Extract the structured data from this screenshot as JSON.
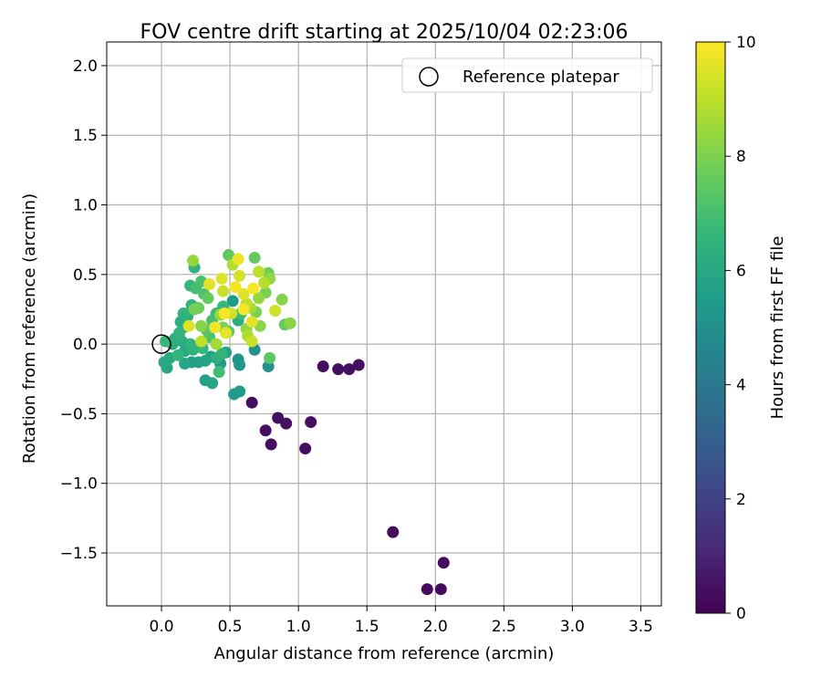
{
  "chart_data": {
    "type": "scatter",
    "title": "FOV centre drift starting at 2025/10/04 02:23:06",
    "xlabel": "Angular distance from reference (arcmin)",
    "ylabel": "Rotation from reference (arcmin)",
    "xlim": [
      -0.4,
      3.65
    ],
    "ylim": [
      -1.88,
      2.17
    ],
    "xticks": [
      0.0,
      0.5,
      1.0,
      1.5,
      2.0,
      2.5,
      3.0,
      3.5
    ],
    "yticks": [
      -1.5,
      -1.0,
      -0.5,
      0.0,
      0.5,
      1.0,
      1.5,
      2.0
    ],
    "xtick_labels": [
      "0.0",
      "0.5",
      "1.0",
      "1.5",
      "2.0",
      "2.5",
      "3.0",
      "3.5"
    ],
    "ytick_labels": [
      "−1.5",
      "−1.0",
      "−0.5",
      "0.0",
      "0.5",
      "1.0",
      "1.5",
      "2.0"
    ],
    "grid": true,
    "legend_position": "top-right",
    "reference": {
      "label": "Reference platepar",
      "x": 0.0,
      "y": 0.0
    },
    "colorbar": {
      "label": "Hours from first FF file",
      "colormap": "viridis",
      "range": [
        0,
        10
      ],
      "ticks": [
        0,
        2,
        4,
        6,
        8,
        10
      ],
      "tick_labels": [
        "0",
        "2",
        "4",
        "6",
        "8",
        "10"
      ]
    },
    "colormap_stops": [
      "#440154",
      "#482878",
      "#3e4989",
      "#31688e",
      "#26828e",
      "#1f9e89",
      "#35b779",
      "#6ece58",
      "#b5de2b",
      "#fde725"
    ],
    "points": [
      {
        "x": 1.94,
        "y": -1.76,
        "h": 0.3
      },
      {
        "x": 2.04,
        "y": -1.76,
        "h": 0.3
      },
      {
        "x": 2.06,
        "y": -1.57,
        "h": 0.3
      },
      {
        "x": 1.69,
        "y": -1.35,
        "h": 0.3
      },
      {
        "x": 1.05,
        "y": -0.75,
        "h": 0.4
      },
      {
        "x": 0.8,
        "y": -0.72,
        "h": 0.4
      },
      {
        "x": 0.76,
        "y": -0.62,
        "h": 0.4
      },
      {
        "x": 0.91,
        "y": -0.57,
        "h": 0.4
      },
      {
        "x": 1.09,
        "y": -0.56,
        "h": 0.4
      },
      {
        "x": 0.85,
        "y": -0.53,
        "h": 0.4
      },
      {
        "x": 0.66,
        "y": -0.42,
        "h": 0.4
      },
      {
        "x": 1.18,
        "y": -0.16,
        "h": 0.4
      },
      {
        "x": 1.29,
        "y": -0.18,
        "h": 0.4
      },
      {
        "x": 1.37,
        "y": -0.18,
        "h": 0.4
      },
      {
        "x": 1.44,
        "y": -0.15,
        "h": 0.4
      },
      {
        "x": 0.53,
        "y": -0.36,
        "h": 5.4
      },
      {
        "x": 0.57,
        "y": -0.34,
        "h": 5.5
      },
      {
        "x": 0.32,
        "y": -0.26,
        "h": 5.7
      },
      {
        "x": 0.37,
        "y": -0.28,
        "h": 5.8
      },
      {
        "x": 0.56,
        "y": -0.11,
        "h": 5.2
      },
      {
        "x": 0.57,
        "y": -0.15,
        "h": 5.3
      },
      {
        "x": 0.78,
        "y": -0.16,
        "h": 5.0
      },
      {
        "x": 0.68,
        "y": -0.04,
        "h": 5.0
      },
      {
        "x": 0.04,
        "y": -0.17,
        "h": 5.9
      },
      {
        "x": 0.02,
        "y": -0.13,
        "h": 6.0
      },
      {
        "x": 0.06,
        "y": -0.1,
        "h": 6.1
      },
      {
        "x": 0.17,
        "y": -0.14,
        "h": 5.9
      },
      {
        "x": 0.22,
        "y": -0.13,
        "h": 5.6
      },
      {
        "x": 0.27,
        "y": -0.13,
        "h": 5.7
      },
      {
        "x": 0.32,
        "y": -0.12,
        "h": 5.8
      },
      {
        "x": 0.36,
        "y": -0.09,
        "h": 5.6
      },
      {
        "x": 0.4,
        "y": -0.1,
        "h": 6.3
      },
      {
        "x": 0.44,
        "y": -0.07,
        "h": 6.5
      },
      {
        "x": 0.47,
        "y": -0.06,
        "h": 5.7
      },
      {
        "x": 0.43,
        "y": -0.14,
        "h": 5.4
      },
      {
        "x": 0.42,
        "y": -0.2,
        "h": 6.9
      },
      {
        "x": 0.12,
        "y": -0.08,
        "h": 6.6
      },
      {
        "x": 0.17,
        "y": -0.05,
        "h": 6.0
      },
      {
        "x": 0.23,
        "y": -0.04,
        "h": 6.5
      },
      {
        "x": 0.3,
        "y": -0.03,
        "h": 6.6
      },
      {
        "x": 0.21,
        "y": 0.0,
        "h": 6.4
      },
      {
        "x": 0.15,
        "y": 0.02,
        "h": 6.2
      },
      {
        "x": 0.1,
        "y": 0.04,
        "h": 6.3
      },
      {
        "x": 0.03,
        "y": 0.02,
        "h": 6.7
      },
      {
        "x": 0.08,
        "y": 0.0,
        "h": 6.1
      },
      {
        "x": 0.13,
        "y": 0.08,
        "h": 6.5
      },
      {
        "x": 0.16,
        "y": 0.12,
        "h": 6.0
      },
      {
        "x": 0.14,
        "y": 0.16,
        "h": 6.2
      },
      {
        "x": 0.19,
        "y": 0.2,
        "h": 6.3
      },
      {
        "x": 0.16,
        "y": 0.22,
        "h": 6.4
      },
      {
        "x": 0.22,
        "y": 0.28,
        "h": 6.5
      },
      {
        "x": 0.21,
        "y": 0.42,
        "h": 6.6
      },
      {
        "x": 0.25,
        "y": 0.4,
        "h": 7.0
      },
      {
        "x": 0.24,
        "y": 0.55,
        "h": 6.4
      },
      {
        "x": 0.29,
        "y": 0.45,
        "h": 7.1
      },
      {
        "x": 0.31,
        "y": 0.36,
        "h": 7.2
      },
      {
        "x": 0.34,
        "y": 0.33,
        "h": 7.6
      },
      {
        "x": 0.27,
        "y": 0.26,
        "h": 7.7
      },
      {
        "x": 0.24,
        "y": 0.25,
        "h": 7.9
      },
      {
        "x": 0.29,
        "y": 0.13,
        "h": 8.1
      },
      {
        "x": 0.33,
        "y": 0.1,
        "h": 7.4
      },
      {
        "x": 0.35,
        "y": 0.05,
        "h": 7.2
      },
      {
        "x": 0.37,
        "y": 0.17,
        "h": 7.0
      },
      {
        "x": 0.4,
        "y": 0.22,
        "h": 6.8
      },
      {
        "x": 0.45,
        "y": 0.27,
        "h": 6.7
      },
      {
        "x": 0.52,
        "y": 0.31,
        "h": 5.5
      },
      {
        "x": 0.56,
        "y": 0.17,
        "h": 6.2
      },
      {
        "x": 0.58,
        "y": 0.22,
        "h": 6.8
      },
      {
        "x": 0.49,
        "y": 0.09,
        "h": 7.4
      },
      {
        "x": 0.45,
        "y": 0.12,
        "h": 8.0
      },
      {
        "x": 0.4,
        "y": 0.0,
        "h": 8.6
      },
      {
        "x": 0.29,
        "y": 0.02,
        "h": 9.0
      },
      {
        "x": 0.2,
        "y": 0.13,
        "h": 9.5
      },
      {
        "x": 0.23,
        "y": 0.6,
        "h": 8.4
      },
      {
        "x": 0.35,
        "y": 0.43,
        "h": 9.6
      },
      {
        "x": 0.44,
        "y": 0.47,
        "h": 9.5
      },
      {
        "x": 0.45,
        "y": 0.38,
        "h": 9.2
      },
      {
        "x": 0.49,
        "y": 0.64,
        "h": 7.5
      },
      {
        "x": 0.52,
        "y": 0.57,
        "h": 8.8
      },
      {
        "x": 0.56,
        "y": 0.61,
        "h": 9.7
      },
      {
        "x": 0.57,
        "y": 0.49,
        "h": 9.4
      },
      {
        "x": 0.54,
        "y": 0.41,
        "h": 9.8
      },
      {
        "x": 0.6,
        "y": 0.36,
        "h": 9.5
      },
      {
        "x": 0.62,
        "y": 0.29,
        "h": 9.0
      },
      {
        "x": 0.65,
        "y": 0.26,
        "h": 8.7
      },
      {
        "x": 0.6,
        "y": 0.25,
        "h": 9.9
      },
      {
        "x": 0.51,
        "y": 0.22,
        "h": 9.3
      },
      {
        "x": 0.46,
        "y": 0.22,
        "h": 9.9
      },
      {
        "x": 0.43,
        "y": 0.21,
        "h": 8.5
      },
      {
        "x": 0.47,
        "y": 0.08,
        "h": 9.6
      },
      {
        "x": 0.39,
        "y": 0.12,
        "h": 9.8
      },
      {
        "x": 0.62,
        "y": 0.11,
        "h": 8.3
      },
      {
        "x": 0.63,
        "y": 0.06,
        "h": 8.8
      },
      {
        "x": 0.66,
        "y": 0.02,
        "h": 9.2
      },
      {
        "x": 0.66,
        "y": 0.16,
        "h": 9.6
      },
      {
        "x": 0.68,
        "y": 0.62,
        "h": 7.6
      },
      {
        "x": 0.67,
        "y": 0.4,
        "h": 9.9
      },
      {
        "x": 0.69,
        "y": 0.23,
        "h": 8.0
      },
      {
        "x": 0.71,
        "y": 0.33,
        "h": 8.4
      },
      {
        "x": 0.71,
        "y": 0.52,
        "h": 9.0
      },
      {
        "x": 0.72,
        "y": 0.13,
        "h": 8.2
      },
      {
        "x": 0.75,
        "y": 0.44,
        "h": 8.9
      },
      {
        "x": 0.78,
        "y": 0.51,
        "h": 7.8
      },
      {
        "x": 0.79,
        "y": 0.47,
        "h": 8.3
      },
      {
        "x": 0.76,
        "y": 0.37,
        "h": 8.0
      },
      {
        "x": 0.83,
        "y": 0.24,
        "h": 9.3
      },
      {
        "x": 0.88,
        "y": 0.32,
        "h": 8.1
      },
      {
        "x": 0.9,
        "y": 0.14,
        "h": 7.6
      },
      {
        "x": 0.94,
        "y": 0.15,
        "h": 8.2
      },
      {
        "x": 0.79,
        "y": -0.1,
        "h": 7.4
      }
    ]
  }
}
